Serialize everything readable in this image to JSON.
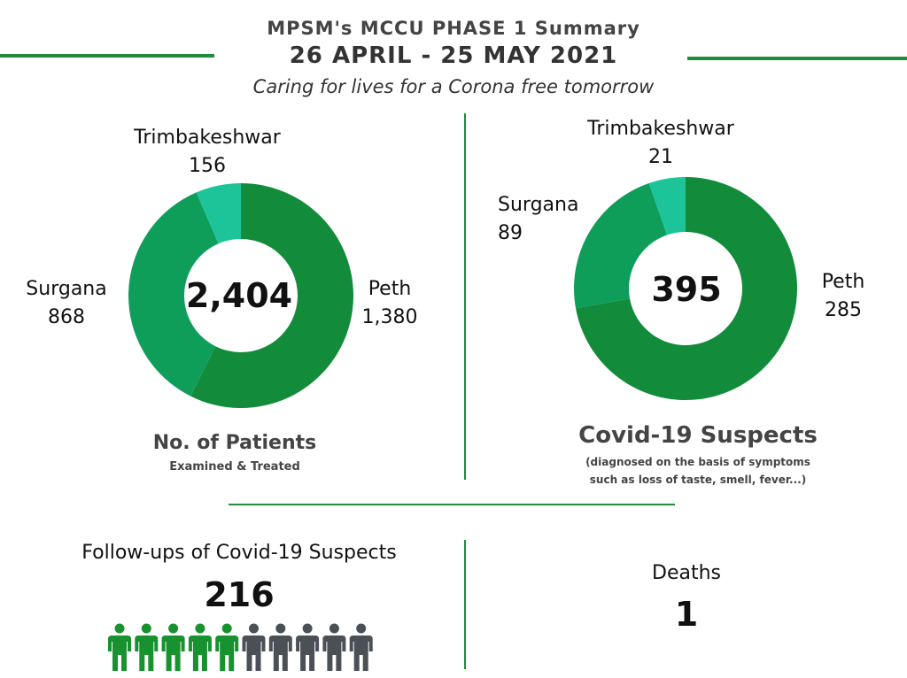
{
  "header": {
    "title": "MPSM's MCCU PHASE 1 Summary",
    "dates": "26 APRIL - 25 MAY 2021",
    "tagline": "Caring for lives for a Corona free  tomorrow"
  },
  "colors": {
    "peth": "#128b3a",
    "surgana": "#0e9e5a",
    "trimbakeshwar": "#1dc49a",
    "divider": "#1e8c3a",
    "person_active": "#17922f",
    "person_inactive": "#4a5056"
  },
  "chart_data": [
    {
      "type": "pie",
      "title": "No. of Patients",
      "subtitle": "Examined & Treated",
      "total_label": "2,404",
      "slices": [
        {
          "name": "Peth",
          "value": 1380,
          "value_label": "1,380"
        },
        {
          "name": "Surgana",
          "value": 868,
          "value_label": "868"
        },
        {
          "name": "Trimbakeshwar",
          "value": 156,
          "value_label": "156"
        }
      ]
    },
    {
      "type": "pie",
      "title": "Covid-19 Suspects",
      "subtitle_lines": [
        "(diagnosed on the basis of symptoms",
        "such as loss of taste, smell, fever...)"
      ],
      "total_label": "395",
      "slices": [
        {
          "name": "Peth",
          "value": 285,
          "value_label": "285"
        },
        {
          "name": "Surgana",
          "value": 89,
          "value_label": "89"
        },
        {
          "name": "Trimbakeshwar",
          "value": 21,
          "value_label": "21"
        }
      ]
    }
  ],
  "followups": {
    "label": "Follow-ups of Covid-19 Suspects",
    "value": "216",
    "icons_total": 10,
    "icons_filled": 5
  },
  "deaths": {
    "label": "Deaths",
    "value": "1"
  }
}
